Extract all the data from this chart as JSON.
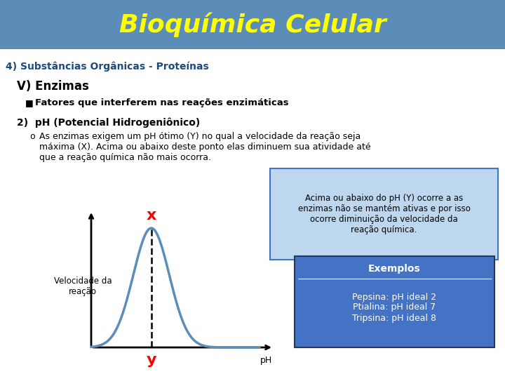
{
  "title": "Bioquímica Celular",
  "title_color": "#FFFF00",
  "title_bg_color": "#5B8DB8",
  "line1": "4) Substâncias Orgânicas - Proteínas",
  "line2": "V) Enzimas",
  "line3": "Fatores que interferem nas reações enzimáticas",
  "section_title": "2)  pH (Potencial Hidrogeniônico)",
  "body_line1": "As enzimas exigem um pH ótimo (Y) no qual a velocidade da reação seja",
  "body_line2": "máxima (X). Acima ou abaixo deste ponto elas diminuem sua atividade até",
  "body_line3": "que a reação química não mais ocorra.",
  "ylabel": "Velocidade da\nreação",
  "xlabel": "pH",
  "x_label_red": "x",
  "y_label_red": "y",
  "curve_color": "#5B8DB8",
  "box1_bg": "#BDD7EE",
  "box1_border": "#4472C4",
  "box1_text": "Acima ou abaixo do pH (Y) ocorre a as\nenzimas não se mantém ativas e por isso\nocorre diminuição da velocidade da\nreação química.",
  "box2_bg": "#4472C4",
  "box2_title": "Exemplos",
  "box2_text": "Pepsina: pH ideal 2\nPtialina: pH ideal 7\nTripsina: pH ideal 8",
  "bg_color": "#FFFFFF",
  "text_color": "#000000",
  "header_color": "#1F497D"
}
